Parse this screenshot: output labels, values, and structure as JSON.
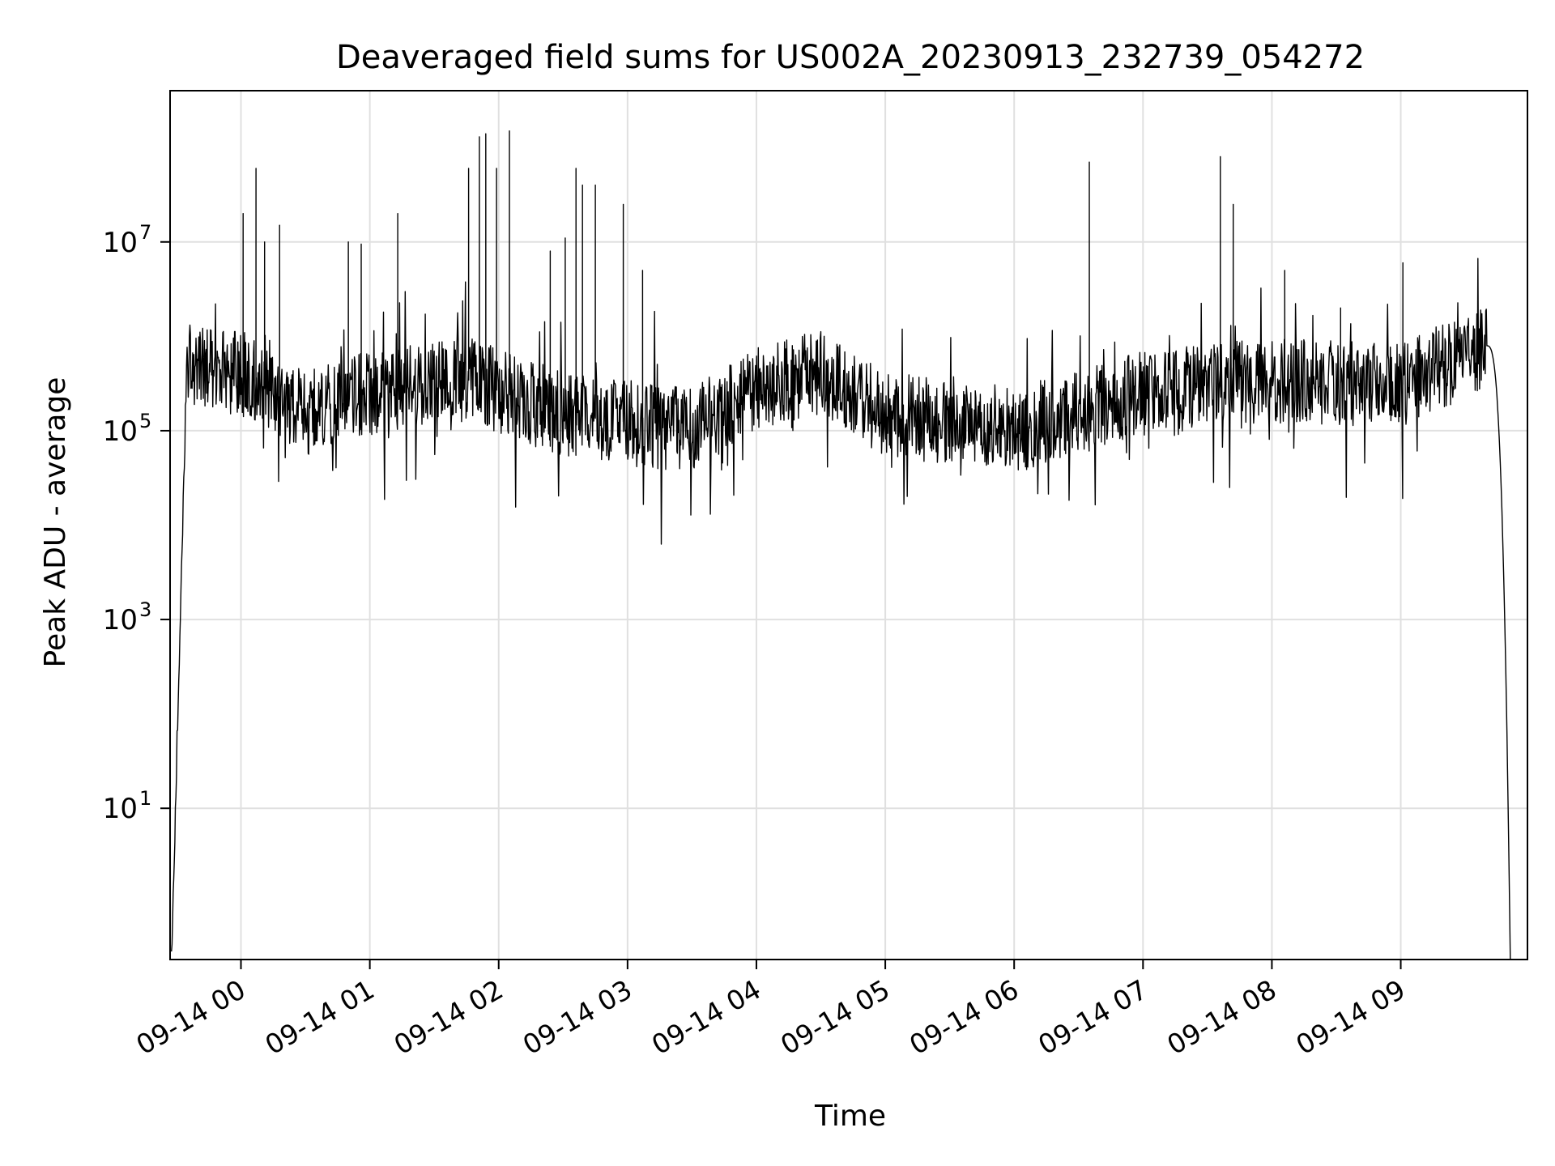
{
  "chart_data": {
    "type": "line",
    "title": "Deaveraged field sums for US002A_20230913_232739_054272",
    "xlabel": "Time",
    "ylabel": "Peak ADU - average",
    "x_unit": "time",
    "x_start": "2023-09-13 23:27:39",
    "x_end": "2023-09-14 09:51:00",
    "xlim": [
      "2023-09-13 23:27:00",
      "2023-09-14 09:59:00"
    ],
    "xticks": [
      {
        "time": "2023-09-14 00:00",
        "label": "09-14 00"
      },
      {
        "time": "2023-09-14 01:00",
        "label": "09-14 01"
      },
      {
        "time": "2023-09-14 02:00",
        "label": "09-14 02"
      },
      {
        "time": "2023-09-14 03:00",
        "label": "09-14 03"
      },
      {
        "time": "2023-09-14 04:00",
        "label": "09-14 04"
      },
      {
        "time": "2023-09-14 05:00",
        "label": "09-14 05"
      },
      {
        "time": "2023-09-14 06:00",
        "label": "09-14 06"
      },
      {
        "time": "2023-09-14 07:00",
        "label": "09-14 07"
      },
      {
        "time": "2023-09-14 08:00",
        "label": "09-14 08"
      },
      {
        "time": "2023-09-14 09:00",
        "label": "09-14 09"
      }
    ],
    "yscale": "log",
    "ylim": [
      0.25,
      400000000
    ],
    "yticks": [
      {
        "value": 10,
        "base": "10",
        "exp": "1"
      },
      {
        "value": 1000,
        "base": "10",
        "exp": "3"
      },
      {
        "value": 100000,
        "base": "10",
        "exp": "5"
      },
      {
        "value": 10000000,
        "base": "10",
        "exp": "7"
      }
    ],
    "grid": true,
    "line_color": "#000000",
    "baseline_profile": [
      {
        "time": "2023-09-13 23:30",
        "value": 500000
      },
      {
        "time": "2023-09-14 00:00",
        "value": 400000
      },
      {
        "time": "2023-09-14 00:30",
        "value": 150000
      },
      {
        "time": "2023-09-14 01:00",
        "value": 250000
      },
      {
        "time": "2023-09-14 01:45",
        "value": 350000
      },
      {
        "time": "2023-09-14 02:30",
        "value": 150000
      },
      {
        "time": "2023-09-14 03:30",
        "value": 100000
      },
      {
        "time": "2023-09-14 04:00",
        "value": 300000
      },
      {
        "time": "2023-09-14 04:30",
        "value": 400000
      },
      {
        "time": "2023-09-14 05:00",
        "value": 150000
      },
      {
        "time": "2023-09-14 06:00",
        "value": 100000
      },
      {
        "time": "2023-09-14 07:00",
        "value": 250000
      },
      {
        "time": "2023-09-14 08:00",
        "value": 350000
      },
      {
        "time": "2023-09-14 09:00",
        "value": 300000
      },
      {
        "time": "2023-09-14 09:40",
        "value": 800000
      }
    ],
    "spikes": [
      {
        "time": "2023-09-14 00:01",
        "value": 20000000
      },
      {
        "time": "2023-09-14 00:07",
        "value": 60000000
      },
      {
        "time": "2023-09-14 00:11",
        "value": 10000000
      },
      {
        "time": "2023-09-14 00:18",
        "value": 15000000
      },
      {
        "time": "2023-09-14 00:50",
        "value": 10000000
      },
      {
        "time": "2023-09-14 00:56",
        "value": 9500000
      },
      {
        "time": "2023-09-14 01:13",
        "value": 20000000
      },
      {
        "time": "2023-09-14 01:46",
        "value": 60000000
      },
      {
        "time": "2023-09-14 01:51",
        "value": 130000000
      },
      {
        "time": "2023-09-14 01:54",
        "value": 140000000
      },
      {
        "time": "2023-09-14 01:59",
        "value": 60000000
      },
      {
        "time": "2023-09-14 02:05",
        "value": 150000000
      },
      {
        "time": "2023-09-14 02:24",
        "value": 8000000
      },
      {
        "time": "2023-09-14 02:31",
        "value": 11000000
      },
      {
        "time": "2023-09-14 02:36",
        "value": 60000000
      },
      {
        "time": "2023-09-14 02:39",
        "value": 40000000
      },
      {
        "time": "2023-09-14 02:45",
        "value": 40000000
      },
      {
        "time": "2023-09-14 02:58",
        "value": 25000000
      },
      {
        "time": "2023-09-14 03:07",
        "value": 5000000
      },
      {
        "time": "2023-09-14 06:35",
        "value": 70000000
      },
      {
        "time": "2023-09-14 07:36",
        "value": 80000000
      },
      {
        "time": "2023-09-14 07:42",
        "value": 25000000
      },
      {
        "time": "2023-09-14 08:06",
        "value": 5000000
      },
      {
        "time": "2023-09-14 08:32",
        "value": 2000000
      },
      {
        "time": "2023-09-14 09:01",
        "value": 6000000
      }
    ]
  }
}
